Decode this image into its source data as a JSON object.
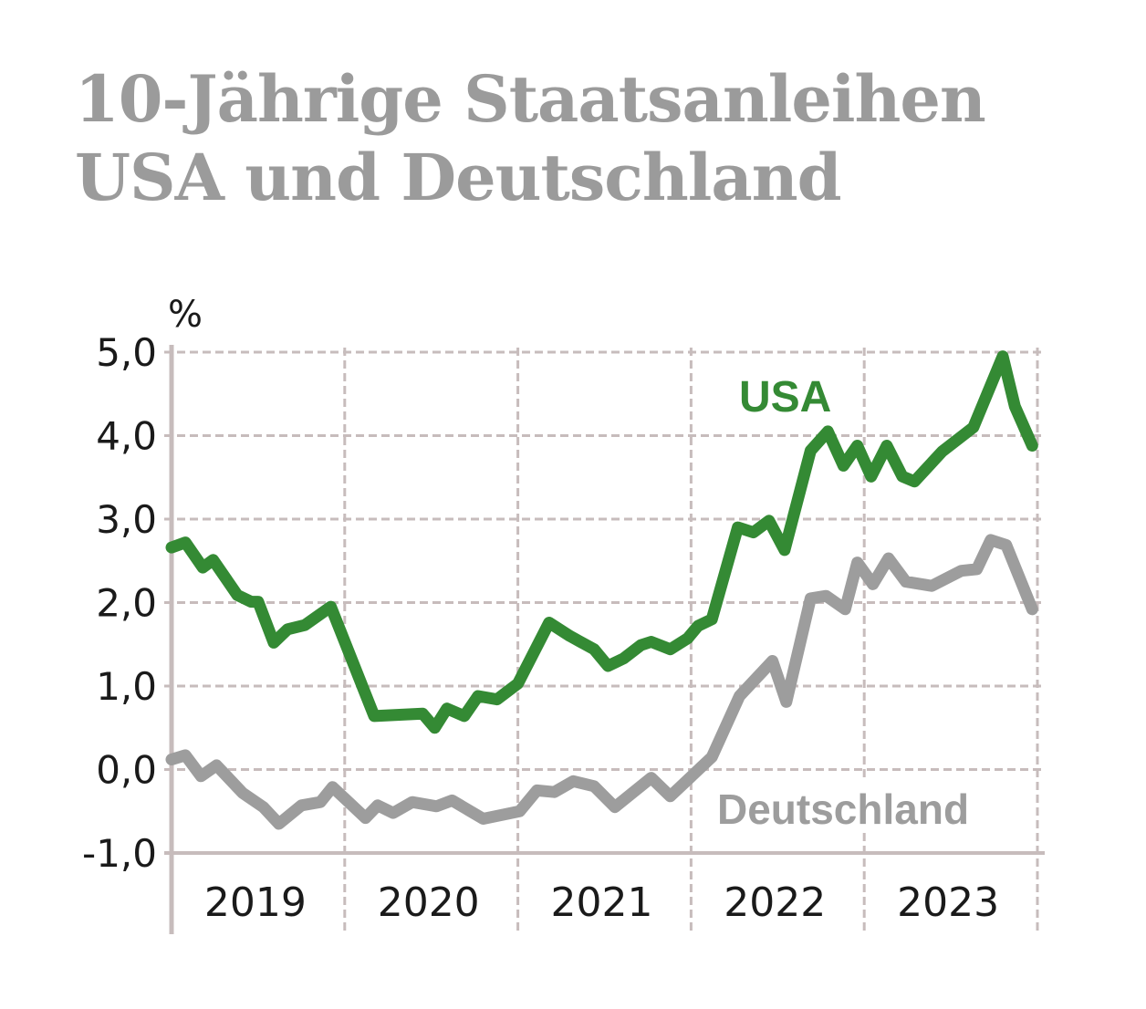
{
  "chart_data": {
    "type": "line",
    "title": "10-Jährige Staatsanleihen USA und Deutschland",
    "title_lines": [
      "10-Jährige Staatsanleihen",
      "USA und Deutschland"
    ],
    "ylabel": "%",
    "xlabel": "",
    "ylim": [
      -1.0,
      5.0
    ],
    "xlim": [
      2019.0,
      2024.0
    ],
    "yticks": [
      5.0,
      4.0,
      3.0,
      2.0,
      1.0,
      0.0,
      -1.0
    ],
    "ytick_labels": [
      "5,0",
      "4,0",
      "3,0",
      "2,0",
      "1,0",
      "0,0",
      "-1,0"
    ],
    "xticks": [
      2019,
      2020,
      2021,
      2022,
      2023
    ],
    "xtick_labels": [
      "2019",
      "2020",
      "2021",
      "2022",
      "2023"
    ],
    "grid": true,
    "series": [
      {
        "name": "USA",
        "color": "#348a34",
        "x": [
          2019.0,
          2019.08,
          2019.18,
          2019.24,
          2019.38,
          2019.46,
          2019.5,
          2019.59,
          2019.67,
          2019.77,
          2019.92,
          2020.17,
          2020.45,
          2020.52,
          2020.59,
          2020.69,
          2020.77,
          2020.88,
          2021.0,
          2021.18,
          2021.3,
          2021.44,
          2021.52,
          2021.61,
          2021.71,
          2021.77,
          2021.88,
          2021.98,
          2022.04,
          2022.12,
          2022.27,
          2022.36,
          2022.45,
          2022.54,
          2022.69,
          2022.79,
          2022.88,
          2022.96,
          2023.04,
          2023.13,
          2023.22,
          2023.29,
          2023.45,
          2023.63,
          2023.8,
          2023.87,
          2023.97
        ],
        "values": [
          2.66,
          2.72,
          2.42,
          2.51,
          2.09,
          2.01,
          2.01,
          1.52,
          1.68,
          1.73,
          1.95,
          0.64,
          0.67,
          0.5,
          0.73,
          0.64,
          0.88,
          0.84,
          1.03,
          1.76,
          1.6,
          1.44,
          1.24,
          1.33,
          1.49,
          1.53,
          1.44,
          1.57,
          1.72,
          1.8,
          2.9,
          2.84,
          2.98,
          2.63,
          3.82,
          4.05,
          3.64,
          3.88,
          3.51,
          3.88,
          3.51,
          3.45,
          3.81,
          4.1,
          4.95,
          4.35,
          3.88
        ]
      },
      {
        "name": "Deutschland",
        "color": "#9d9d9d",
        "x": [
          2019.0,
          2019.08,
          2019.17,
          2019.26,
          2019.41,
          2019.53,
          2019.62,
          2019.75,
          2019.86,
          2019.93,
          2020.12,
          2020.19,
          2020.28,
          2020.39,
          2020.53,
          2020.62,
          2020.8,
          2021.01,
          2021.11,
          2021.21,
          2021.32,
          2021.44,
          2021.56,
          2021.77,
          2021.88,
          2022.12,
          2022.28,
          2022.47,
          2022.55,
          2022.69,
          2022.78,
          2022.89,
          2022.96,
          2023.05,
          2023.14,
          2023.24,
          2023.39,
          2023.56,
          2023.65,
          2023.73,
          2023.82,
          2023.97
        ],
        "values": [
          0.12,
          0.17,
          -0.08,
          0.05,
          -0.28,
          -0.45,
          -0.65,
          -0.43,
          -0.39,
          -0.21,
          -0.58,
          -0.43,
          -0.52,
          -0.39,
          -0.44,
          -0.37,
          -0.59,
          -0.5,
          -0.25,
          -0.27,
          -0.14,
          -0.2,
          -0.45,
          -0.1,
          -0.32,
          0.15,
          0.88,
          1.3,
          0.81,
          2.05,
          2.08,
          1.92,
          2.48,
          2.22,
          2.53,
          2.25,
          2.2,
          2.38,
          2.4,
          2.75,
          2.69,
          1.92
        ]
      }
    ],
    "annotations": [
      {
        "text": "USA",
        "series": "USA",
        "color": "#348a34"
      },
      {
        "text": "Deutschland",
        "series": "Deutschland",
        "color": "#9d9d9d"
      }
    ],
    "colors": {
      "title": "#9b9b9b",
      "grid": "#c7bcbc",
      "axis": "#c7bcbc",
      "tick_text": "#1a1a1a"
    }
  }
}
